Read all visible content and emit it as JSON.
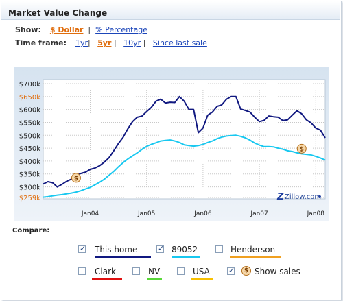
{
  "widget": {
    "title": "Market Value Change",
    "show_label": "Show:",
    "show_options": [
      "$ Dollar",
      "% Percentage"
    ],
    "show_selected": "$ Dollar",
    "timeframe_label": "Time frame:",
    "timeframe_options": [
      "1yr",
      "5yr",
      "10yr",
      "Since last sale"
    ],
    "timeframe_selected": "5yr",
    "compare_label": "Compare:",
    "compare": [
      {
        "label": "This home",
        "checked": true,
        "color": "#101880"
      },
      {
        "label": "89052",
        "checked": true,
        "color": "#18c8f0"
      },
      {
        "label": "Henderson",
        "checked": false,
        "color": "#f0a020"
      },
      {
        "label": "Clark",
        "checked": false,
        "color": "#e01010"
      },
      {
        "label": "NV",
        "checked": false,
        "color": "#58d838"
      },
      {
        "label": "USA",
        "checked": false,
        "color": "#f8c000"
      },
      {
        "label": "Show sales",
        "checked": true,
        "color": null,
        "icon": "dollar-sale-icon"
      }
    ],
    "watermark": "Zillow.com"
  },
  "chart_data": {
    "type": "line",
    "title": "",
    "xlabel": "",
    "ylabel": "",
    "y_ticks": [
      "$700k",
      "$650k",
      "$600k",
      "$550k",
      "$500k",
      "$450k",
      "$400k",
      "$350k",
      "$300k",
      "$259k"
    ],
    "y_highlight_ticks": [
      "$650k",
      "$259k"
    ],
    "x_ticks": [
      "Jan04",
      "Jan05",
      "Jan06",
      "Jan07",
      "Jan08"
    ],
    "ylim": [
      259,
      700
    ],
    "grid": true,
    "highlight_color": "#e06d0d",
    "series": [
      {
        "name": "This home",
        "color": "#101880",
        "points": [
          [
            "2003-03",
            311
          ],
          [
            "2003-04",
            320
          ],
          [
            "2003-05",
            316
          ],
          [
            "2003-06",
            300
          ],
          [
            "2003-07",
            310
          ],
          [
            "2003-08",
            322
          ],
          [
            "2003-09",
            330
          ],
          [
            "2003-10",
            345
          ],
          [
            "2003-11",
            352
          ],
          [
            "2003-12",
            357
          ],
          [
            "2004-01",
            368
          ],
          [
            "2004-02",
            373
          ],
          [
            "2004-03",
            382
          ],
          [
            "2004-04",
            396
          ],
          [
            "2004-05",
            413
          ],
          [
            "2004-06",
            440
          ],
          [
            "2004-07",
            468
          ],
          [
            "2004-08",
            492
          ],
          [
            "2004-09",
            525
          ],
          [
            "2004-10",
            553
          ],
          [
            "2004-11",
            570
          ],
          [
            "2004-12",
            574
          ],
          [
            "2005-01",
            592
          ],
          [
            "2005-02",
            608
          ],
          [
            "2005-03",
            632
          ],
          [
            "2005-04",
            640
          ],
          [
            "2005-05",
            625
          ],
          [
            "2005-06",
            628
          ],
          [
            "2005-07",
            627
          ],
          [
            "2005-08",
            650
          ],
          [
            "2005-09",
            632
          ],
          [
            "2005-10",
            600
          ],
          [
            "2005-11",
            600
          ],
          [
            "2005-12",
            510
          ],
          [
            "2006-01",
            528
          ],
          [
            "2006-02",
            578
          ],
          [
            "2006-03",
            590
          ],
          [
            "2006-04",
            612
          ],
          [
            "2006-05",
            618
          ],
          [
            "2006-06",
            640
          ],
          [
            "2006-07",
            650
          ],
          [
            "2006-08",
            650
          ],
          [
            "2006-09",
            602
          ],
          [
            "2006-10",
            596
          ],
          [
            "2006-11",
            590
          ],
          [
            "2006-12",
            570
          ],
          [
            "2007-01",
            553
          ],
          [
            "2007-02",
            558
          ],
          [
            "2007-03",
            575
          ],
          [
            "2007-04",
            572
          ],
          [
            "2007-05",
            570
          ],
          [
            "2007-06",
            557
          ],
          [
            "2007-07",
            560
          ],
          [
            "2007-08",
            578
          ],
          [
            "2007-09",
            595
          ],
          [
            "2007-10",
            583
          ],
          [
            "2007-11",
            560
          ],
          [
            "2007-12",
            548
          ],
          [
            "2008-01",
            528
          ],
          [
            "2008-02",
            520
          ],
          [
            "2008-03",
            490
          ]
        ]
      },
      {
        "name": "89052",
        "color": "#18c8f0",
        "points": [
          [
            "2003-03",
            260
          ],
          [
            "2003-04",
            262
          ],
          [
            "2003-05",
            265
          ],
          [
            "2003-06",
            268
          ],
          [
            "2003-07",
            270
          ],
          [
            "2003-08",
            273
          ],
          [
            "2003-09",
            276
          ],
          [
            "2003-10",
            280
          ],
          [
            "2003-11",
            285
          ],
          [
            "2003-12",
            292
          ],
          [
            "2004-01",
            298
          ],
          [
            "2004-02",
            308
          ],
          [
            "2004-03",
            318
          ],
          [
            "2004-04",
            330
          ],
          [
            "2004-05",
            345
          ],
          [
            "2004-06",
            360
          ],
          [
            "2004-07",
            378
          ],
          [
            "2004-08",
            394
          ],
          [
            "2004-09",
            408
          ],
          [
            "2004-10",
            420
          ],
          [
            "2004-11",
            432
          ],
          [
            "2004-12",
            445
          ],
          [
            "2005-01",
            457
          ],
          [
            "2005-02",
            465
          ],
          [
            "2005-03",
            471
          ],
          [
            "2005-04",
            478
          ],
          [
            "2005-05",
            480
          ],
          [
            "2005-06",
            482
          ],
          [
            "2005-07",
            478
          ],
          [
            "2005-08",
            472
          ],
          [
            "2005-09",
            463
          ],
          [
            "2005-10",
            460
          ],
          [
            "2005-11",
            458
          ],
          [
            "2005-12",
            460
          ],
          [
            "2006-01",
            465
          ],
          [
            "2006-02",
            472
          ],
          [
            "2006-03",
            478
          ],
          [
            "2006-04",
            487
          ],
          [
            "2006-05",
            493
          ],
          [
            "2006-06",
            497
          ],
          [
            "2006-07",
            499
          ],
          [
            "2006-08",
            500
          ],
          [
            "2006-09",
            496
          ],
          [
            "2006-10",
            490
          ],
          [
            "2006-11",
            481
          ],
          [
            "2006-12",
            470
          ],
          [
            "2007-01",
            462
          ],
          [
            "2007-02",
            456
          ],
          [
            "2007-03",
            456
          ],
          [
            "2007-04",
            455
          ],
          [
            "2007-05",
            450
          ],
          [
            "2007-06",
            446
          ],
          [
            "2007-07",
            440
          ],
          [
            "2007-08",
            437
          ],
          [
            "2007-09",
            432
          ],
          [
            "2007-10",
            428
          ],
          [
            "2007-11",
            426
          ],
          [
            "2007-12",
            424
          ],
          [
            "2008-01",
            418
          ],
          [
            "2008-02",
            412
          ],
          [
            "2008-03",
            404
          ]
        ]
      }
    ],
    "sales": [
      {
        "date": "2003-10",
        "value": 335
      },
      {
        "date": "2007-10",
        "value": 448
      }
    ]
  }
}
